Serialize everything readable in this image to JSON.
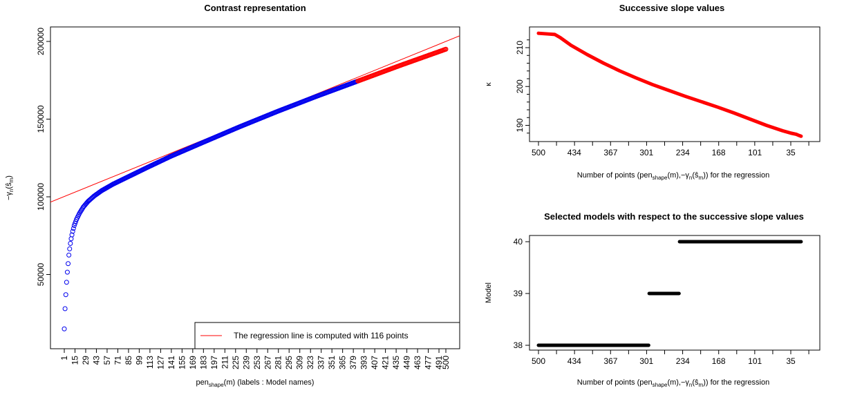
{
  "colors": {
    "points": "#0000ee",
    "regression": "#ff0000",
    "selected": "#000000",
    "bg": "#ffffff"
  },
  "chart_data": [
    {
      "type": "scatter",
      "title": "Contrast representation",
      "xlabel": {
        "main": "pen",
        "sub": "shape",
        "rest": "(m) (labels : Model names)"
      },
      "ylabel": {
        "pre": "−γ",
        "sub": "n",
        "mid": "(ŝ",
        "sub2": "m",
        "post": ")"
      },
      "xlim": [
        1,
        500
      ],
      "ylim": [
        10000,
        210000
      ],
      "yticks": [
        50000,
        100000,
        150000,
        200000
      ],
      "ytick_labels": [
        "50000",
        "100000",
        "150000",
        "200000"
      ],
      "xtick_labels": [
        "1",
        "15",
        "29",
        "43",
        "57",
        "71",
        "85",
        "99",
        "113",
        "127",
        "141",
        "155",
        "169",
        "183",
        "197",
        "211",
        "225",
        "239",
        "253",
        "267",
        "281",
        "295",
        "309",
        "323",
        "337",
        "351",
        "365",
        "379",
        "393",
        "407",
        "421",
        "435",
        "449",
        "463",
        "477",
        "491",
        "500"
      ],
      "series_curve_points": [
        [
          1,
          15000
        ],
        [
          2,
          28000
        ],
        [
          3,
          37000
        ],
        [
          4,
          45000
        ],
        [
          5,
          51500
        ],
        [
          6,
          57000
        ],
        [
          7,
          62500
        ],
        [
          8,
          66500
        ],
        [
          9,
          70000
        ],
        [
          10,
          73000
        ],
        [
          11,
          75500
        ],
        [
          12,
          77800
        ],
        [
          14,
          81500
        ],
        [
          17,
          85500
        ],
        [
          21,
          89500
        ],
        [
          26,
          93500
        ],
        [
          32,
          97000
        ],
        [
          40,
          100500
        ],
        [
          50,
          104000
        ],
        [
          65,
          108200
        ],
        [
          85,
          113000
        ],
        [
          110,
          119000
        ],
        [
          140,
          126000
        ],
        [
          180,
          134500
        ],
        [
          230,
          145000
        ],
        [
          280,
          155000
        ],
        [
          330,
          164500
        ],
        [
          385,
          174500
        ],
        [
          440,
          184500
        ],
        [
          500,
          195000
        ]
      ],
      "regression_points": 116,
      "regression_line": {
        "intercept": 100000,
        "slope": 200
      },
      "legend": {
        "text": "The regression line is computed with 116 points",
        "position": "bottom-right"
      }
    },
    {
      "type": "line",
      "title": "Successive slope values",
      "xlabel": {
        "pre": "Number of points (pen",
        "sub": "shape",
        "mid": "(m),−γ",
        "sub2": "n",
        "mid2": "(ŝ",
        "sub3": "m",
        "post": ")) for the regression"
      },
      "ylabel": "κ",
      "xtick_labels": [
        "500",
        "434",
        "367",
        "301",
        "234",
        "168",
        "101",
        "35"
      ],
      "xtick_values": [
        500,
        434,
        367,
        301,
        234,
        168,
        101,
        35
      ],
      "yticks": [
        190,
        200,
        210
      ],
      "ylim": [
        187,
        213.6
      ],
      "x": [
        500,
        480,
        470,
        460,
        440,
        410,
        380,
        350,
        320,
        290,
        260,
        230,
        200,
        170,
        140,
        110,
        80,
        50,
        35,
        25,
        20,
        16
      ],
      "y": [
        213.7,
        213.5,
        213.4,
        212.6,
        210.6,
        208.2,
        206.0,
        204.0,
        202.2,
        200.5,
        199.0,
        197.5,
        196.1,
        194.7,
        193.2,
        191.6,
        190.0,
        188.6,
        188.0,
        187.7,
        187.4,
        187.2
      ]
    },
    {
      "type": "line",
      "title": "Selected models with respect to the successive slope values",
      "xlabel": {
        "pre": "Number of points (pen",
        "sub": "shape",
        "mid": "(m),−γ",
        "sub2": "n",
        "mid2": "(ŝ",
        "sub3": "m",
        "post": ")) for the regression"
      },
      "ylabel": "Model",
      "xtick_labels": [
        "500",
        "434",
        "367",
        "301",
        "234",
        "168",
        "101",
        "35"
      ],
      "xtick_values": [
        500,
        434,
        367,
        301,
        234,
        168,
        101,
        35
      ],
      "yticks": [
        38,
        39,
        40
      ],
      "ytick_labels": [
        "38",
        "39",
        "40"
      ],
      "ylim": [
        38,
        40
      ],
      "segments": [
        {
          "model": 38,
          "x_from": 500,
          "x_to": 297
        },
        {
          "model": 39,
          "x_from": 296,
          "x_to": 241
        },
        {
          "model": 40,
          "x_from": 240,
          "x_to": 16
        }
      ]
    }
  ]
}
